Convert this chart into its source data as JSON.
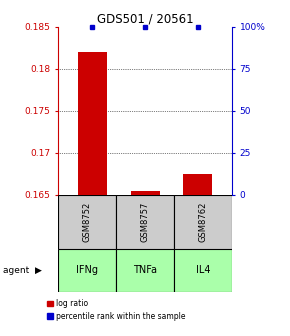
{
  "title": "GDS501 / 20561",
  "samples": [
    "GSM8752",
    "GSM8757",
    "GSM8762"
  ],
  "agents": [
    "IFNg",
    "TNFa",
    "IL4"
  ],
  "log_ratios": [
    0.182,
    0.1655,
    0.1675
  ],
  "percentile_ranks": [
    100,
    100,
    100
  ],
  "ylim": [
    0.165,
    0.185
  ],
  "yticks": [
    0.165,
    0.17,
    0.175,
    0.18,
    0.185
  ],
  "ytick_labels": [
    "0.165",
    "0.17",
    "0.175",
    "0.18",
    "0.185"
  ],
  "right_yticks": [
    0,
    25,
    50,
    75,
    100
  ],
  "right_ytick_labels": [
    "0",
    "25",
    "50",
    "75",
    "100%"
  ],
  "bar_color": "#cc0000",
  "percentile_color": "#0000cc",
  "agent_color": "#aaffaa",
  "sample_bg_color": "#cccccc",
  "left_axis_color": "#cc0000",
  "right_axis_color": "#0000cc",
  "bar_width": 0.55
}
